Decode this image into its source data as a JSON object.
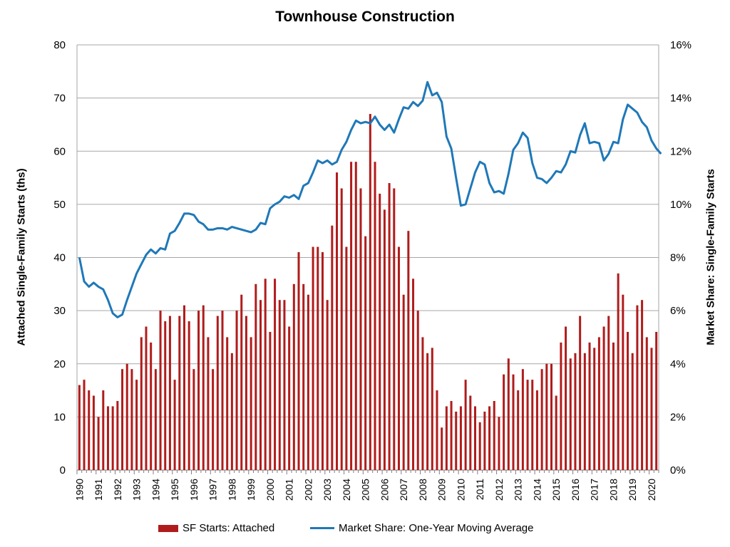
{
  "chart_data": {
    "type": "bar+line",
    "title": "Townhouse Construction",
    "ylabel_left": "Attached Single-Family Starts (ths)",
    "ylabel_right": "Market Share: Single-Family Starts",
    "ylim_left": [
      0,
      80
    ],
    "ylim_right": [
      0,
      16
    ],
    "yticks_left": [
      "0",
      "10",
      "20",
      "30",
      "40",
      "50",
      "60",
      "70",
      "80"
    ],
    "yticks_right": [
      "0%",
      "2%",
      "4%",
      "6%",
      "8%",
      "10%",
      "12%",
      "14%",
      "16%"
    ],
    "xticks": [
      "1990",
      "1991",
      "1992",
      "1993",
      "1994",
      "1995",
      "1996",
      "1997",
      "1998",
      "1999",
      "2000",
      "2001",
      "2002",
      "2003",
      "2004",
      "2005",
      "2006",
      "2007",
      "2008",
      "2009",
      "2010",
      "2011",
      "2012",
      "2013",
      "2014",
      "2015",
      "2016",
      "2017",
      "2018",
      "2019",
      "2020"
    ],
    "x_start": "1990 Q1",
    "frequency": "quarterly",
    "grid": true,
    "legend_position": "bottom",
    "series": [
      {
        "name": "SF Starts: Attached",
        "type": "bar",
        "axis": "left",
        "color": "#b01c1c",
        "values": [
          16,
          17,
          15,
          14,
          10,
          15,
          12,
          12,
          13,
          19,
          20,
          19,
          17,
          25,
          27,
          24,
          19,
          30,
          28,
          29,
          17,
          29,
          31,
          28,
          19,
          30,
          31,
          25,
          19,
          29,
          30,
          25,
          22,
          30,
          33,
          29,
          25,
          35,
          32,
          36,
          26,
          36,
          32,
          32,
          27,
          35,
          41,
          35,
          33,
          42,
          42,
          41,
          32,
          46,
          56,
          53,
          42,
          58,
          58,
          53,
          44,
          67,
          58,
          52,
          49,
          54,
          53,
          42,
          33,
          45,
          36,
          30,
          25,
          22,
          23,
          15,
          8,
          12,
          13,
          11,
          12,
          17,
          14,
          12,
          9,
          11,
          12,
          13,
          10,
          18,
          21,
          18,
          15,
          19,
          17,
          17,
          15,
          19,
          20,
          20,
          14,
          24,
          27,
          21,
          22,
          29,
          22,
          24,
          23,
          25,
          27,
          29,
          24,
          37,
          33,
          26,
          22,
          31,
          32,
          25,
          23,
          26
        ]
      },
      {
        "name": "Market Share: One-Year Moving Average",
        "type": "line",
        "axis": "right",
        "color": "#1f78b8",
        "values": [
          8.0,
          7.1,
          6.9,
          7.05,
          6.9,
          6.8,
          6.4,
          5.9,
          5.75,
          5.85,
          6.4,
          6.9,
          7.4,
          7.75,
          8.1,
          8.3,
          8.15,
          8.35,
          8.3,
          8.9,
          9.0,
          9.3,
          9.65,
          9.65,
          9.6,
          9.35,
          9.25,
          9.05,
          9.05,
          9.1,
          9.1,
          9.05,
          9.15,
          9.1,
          9.05,
          9.0,
          8.95,
          9.05,
          9.3,
          9.25,
          9.85,
          10.0,
          10.1,
          10.3,
          10.25,
          10.35,
          10.2,
          10.7,
          10.8,
          11.2,
          11.65,
          11.55,
          11.65,
          11.5,
          11.6,
          12.05,
          12.35,
          12.8,
          13.15,
          13.05,
          13.1,
          13.05,
          13.3,
          13.0,
          12.8,
          13.0,
          12.7,
          13.2,
          13.65,
          13.6,
          13.85,
          13.7,
          13.9,
          14.6,
          14.1,
          14.2,
          13.85,
          12.55,
          12.1,
          11.0,
          9.95,
          10.0,
          10.6,
          11.2,
          11.6,
          11.5,
          10.8,
          10.45,
          10.5,
          10.4,
          11.15,
          12.05,
          12.3,
          12.7,
          12.5,
          11.55,
          11.0,
          10.95,
          10.8,
          11.0,
          11.25,
          11.2,
          11.5,
          12.0,
          11.95,
          12.6,
          13.05,
          12.3,
          12.35,
          12.3,
          11.65,
          11.9,
          12.35,
          12.3,
          13.2,
          13.75,
          13.6,
          13.45,
          13.1,
          12.9,
          12.4,
          12.1,
          11.9
        ]
      }
    ]
  }
}
